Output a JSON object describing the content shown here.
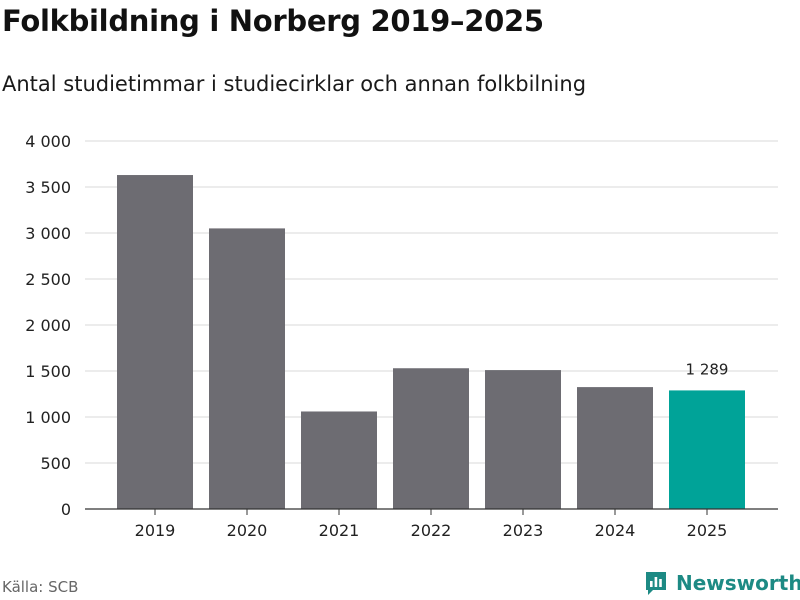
{
  "title": "Folkbildning i Norberg 2019–2025",
  "subtitle": "Antal studietimmar i studiecirklar och annan folkbilning",
  "source": "Källa: SCB",
  "brand": "Newsworthy",
  "colors": {
    "bar": "#6d6c72",
    "highlight": "#00a398",
    "grid": "#d9d9d9",
    "axis": "#333333",
    "brand": "#1d8a84"
  },
  "chart_data": {
    "type": "bar",
    "categories": [
      "2019",
      "2020",
      "2021",
      "2022",
      "2023",
      "2024",
      "2025"
    ],
    "values": [
      3630,
      3050,
      1060,
      1530,
      1510,
      1325,
      1289
    ],
    "highlight_index": 6,
    "data_labels": [
      {
        "index": 6,
        "text": "1 289"
      }
    ],
    "ylim": [
      0,
      4000
    ],
    "yticks": [
      0,
      500,
      1000,
      1500,
      2000,
      2500,
      3000,
      3500,
      4000
    ],
    "ytick_labels": [
      "0",
      "500",
      "1 000",
      "1 500",
      "2 000",
      "2 500",
      "3 000",
      "3 500",
      "4 000"
    ],
    "xlabel": "",
    "ylabel": "",
    "grid": true,
    "legend": "none"
  }
}
